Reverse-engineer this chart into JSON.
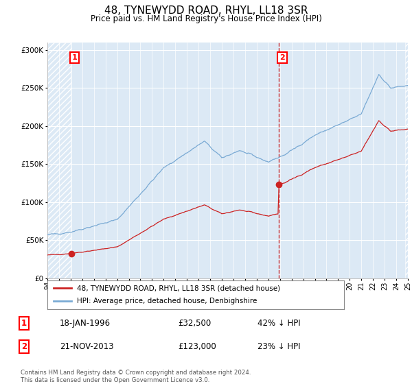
{
  "title": "48, TYNEWYDD ROAD, RHYL, LL18 3SR",
  "subtitle": "Price paid vs. HM Land Registry's House Price Index (HPI)",
  "legend_line1": "48, TYNEWYDD ROAD, RHYL, LL18 3SR (detached house)",
  "legend_line2": "HPI: Average price, detached house, Denbighshire",
  "sale1_date": "18-JAN-1996",
  "sale1_price": 32500,
  "sale1_price_str": "£32,500",
  "sale1_hpi": "42% ↓ HPI",
  "sale2_date": "21-NOV-2013",
  "sale2_price": 123000,
  "sale2_price_str": "£123,000",
  "sale2_hpi": "23% ↓ HPI",
  "footer": "Contains HM Land Registry data © Crown copyright and database right 2024.\nThis data is licensed under the Open Government Licence v3.0.",
  "hpi_color": "#7aaad4",
  "price_color": "#cc2222",
  "marker_color": "#cc2222",
  "bg_main_color": "#dce9f5",
  "grid_color": "#ffffff",
  "ylim": [
    0,
    310000
  ],
  "year_start": 1994,
  "year_end": 2025,
  "sale1_year": 1996.05,
  "sale2_year": 2013.9
}
